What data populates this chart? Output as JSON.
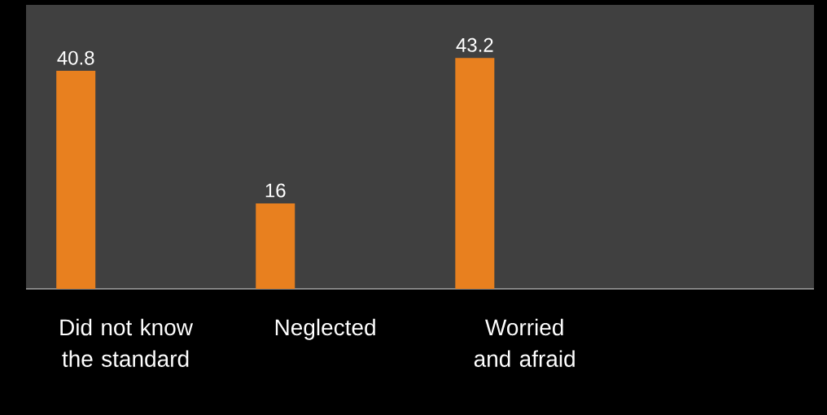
{
  "chart_data": {
    "type": "bar",
    "categories": [
      "Did not know the standard",
      "Neglected",
      "Worried and afraid"
    ],
    "values": [
      40.8,
      16,
      43.2
    ],
    "color": "#e8801f",
    "data_labels": true
  }
}
